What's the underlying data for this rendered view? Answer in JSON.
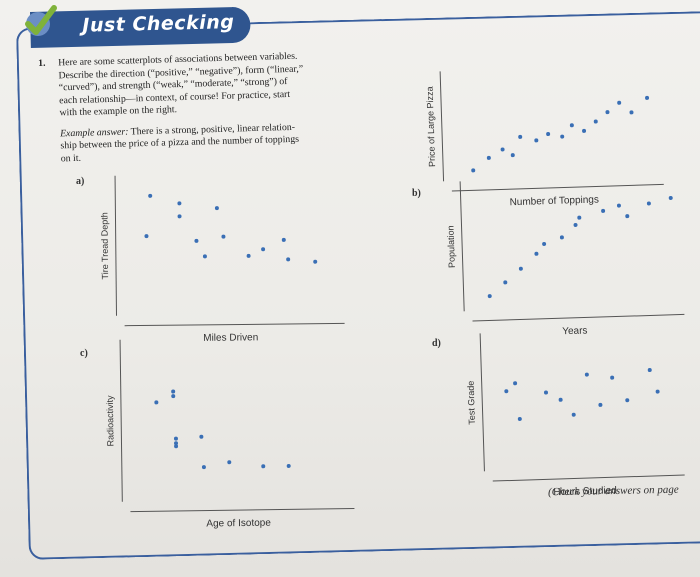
{
  "banner": {
    "title": "Just Checking"
  },
  "question": {
    "number": "1.",
    "lines": [
      "Here are some scatterplots of associations between variables.",
      "Describe the direction (“positive,” “negative”), form (“linear,”",
      "“curved”), and strength (“weak,” “moderate,” “strong”) of",
      "each relationship—in context, of course! For practice, start",
      "with the example on the right."
    ],
    "example_label": "Example answer:",
    "example_lines": [
      " There is a strong, positive, linear relation-",
      "ship between the price of a pizza and the number of toppings",
      "on it."
    ]
  },
  "plots": {
    "example": {
      "xlabel": "Number of Toppings",
      "ylabel": "Price of Large Pizza",
      "points": [
        [
          1,
          1
        ],
        [
          1.8,
          2.2
        ],
        [
          2.5,
          3
        ],
        [
          3,
          2.4
        ],
        [
          3.4,
          4.2
        ],
        [
          4.2,
          3.8
        ],
        [
          4.8,
          4.4
        ],
        [
          5.5,
          4.1
        ],
        [
          6,
          5.2
        ],
        [
          6.6,
          4.6
        ],
        [
          7.2,
          5.5
        ],
        [
          7.8,
          6.4
        ],
        [
          8.4,
          7.3
        ],
        [
          9,
          6.3
        ],
        [
          9.8,
          7.7
        ]
      ]
    },
    "a": {
      "label": "a)",
      "xlabel": "Miles Driven",
      "ylabel": "Tire Tread Depth",
      "points": [
        [
          1.2,
          9.2
        ],
        [
          2.6,
          8.6
        ],
        [
          2.6,
          7.6
        ],
        [
          4.4,
          8.2
        ],
        [
          1,
          6.1
        ],
        [
          3.4,
          5.7
        ],
        [
          4.7,
          6
        ],
        [
          3.8,
          4.5
        ],
        [
          6.6,
          5
        ],
        [
          5.9,
          4.5
        ],
        [
          7.6,
          5.7
        ],
        [
          7.8,
          4.2
        ],
        [
          9.1,
          4
        ]
      ]
    },
    "b": {
      "label": "b)",
      "xlabel": "Years",
      "ylabel": "Population",
      "points": [
        [
          0.8,
          1.2
        ],
        [
          1.6,
          2.3
        ],
        [
          2.4,
          3.4
        ],
        [
          3.2,
          4.6
        ],
        [
          3.6,
          5.4
        ],
        [
          4.5,
          5.9
        ],
        [
          5.2,
          6.9
        ],
        [
          5.4,
          7.5
        ],
        [
          6.6,
          8
        ],
        [
          7.4,
          8.4
        ],
        [
          7.8,
          7.5
        ],
        [
          8.9,
          8.5
        ],
        [
          10,
          8.9
        ]
      ]
    },
    "c": {
      "label": "c)",
      "xlabel": "Age of Isotope",
      "ylabel": "Radioactivity",
      "points": [
        [
          1.2,
          6.5
        ],
        [
          2,
          6.9
        ],
        [
          2,
          7.2
        ],
        [
          2.1,
          4.1
        ],
        [
          2.1,
          3.8
        ],
        [
          2.1,
          3.6
        ],
        [
          3.3,
          4.2
        ],
        [
          3.4,
          2.2
        ],
        [
          4.6,
          2.5
        ],
        [
          6.2,
          2.2
        ],
        [
          7.4,
          2.2
        ]
      ]
    },
    "d": {
      "label": "d)",
      "xlabel": "Hours Studied",
      "ylabel": "Test Grade",
      "points": [
        [
          0.8,
          6.2
        ],
        [
          1.3,
          6.8
        ],
        [
          1.5,
          4
        ],
        [
          3,
          6
        ],
        [
          3.8,
          5.4
        ],
        [
          4.5,
          4.2
        ],
        [
          5.3,
          7.3
        ],
        [
          6,
          4.9
        ],
        [
          6.7,
          7
        ],
        [
          7.5,
          5.2
        ],
        [
          8.8,
          7.5
        ],
        [
          9.2,
          5.8
        ]
      ]
    }
  },
  "footer": "(Check your answers on page"
}
